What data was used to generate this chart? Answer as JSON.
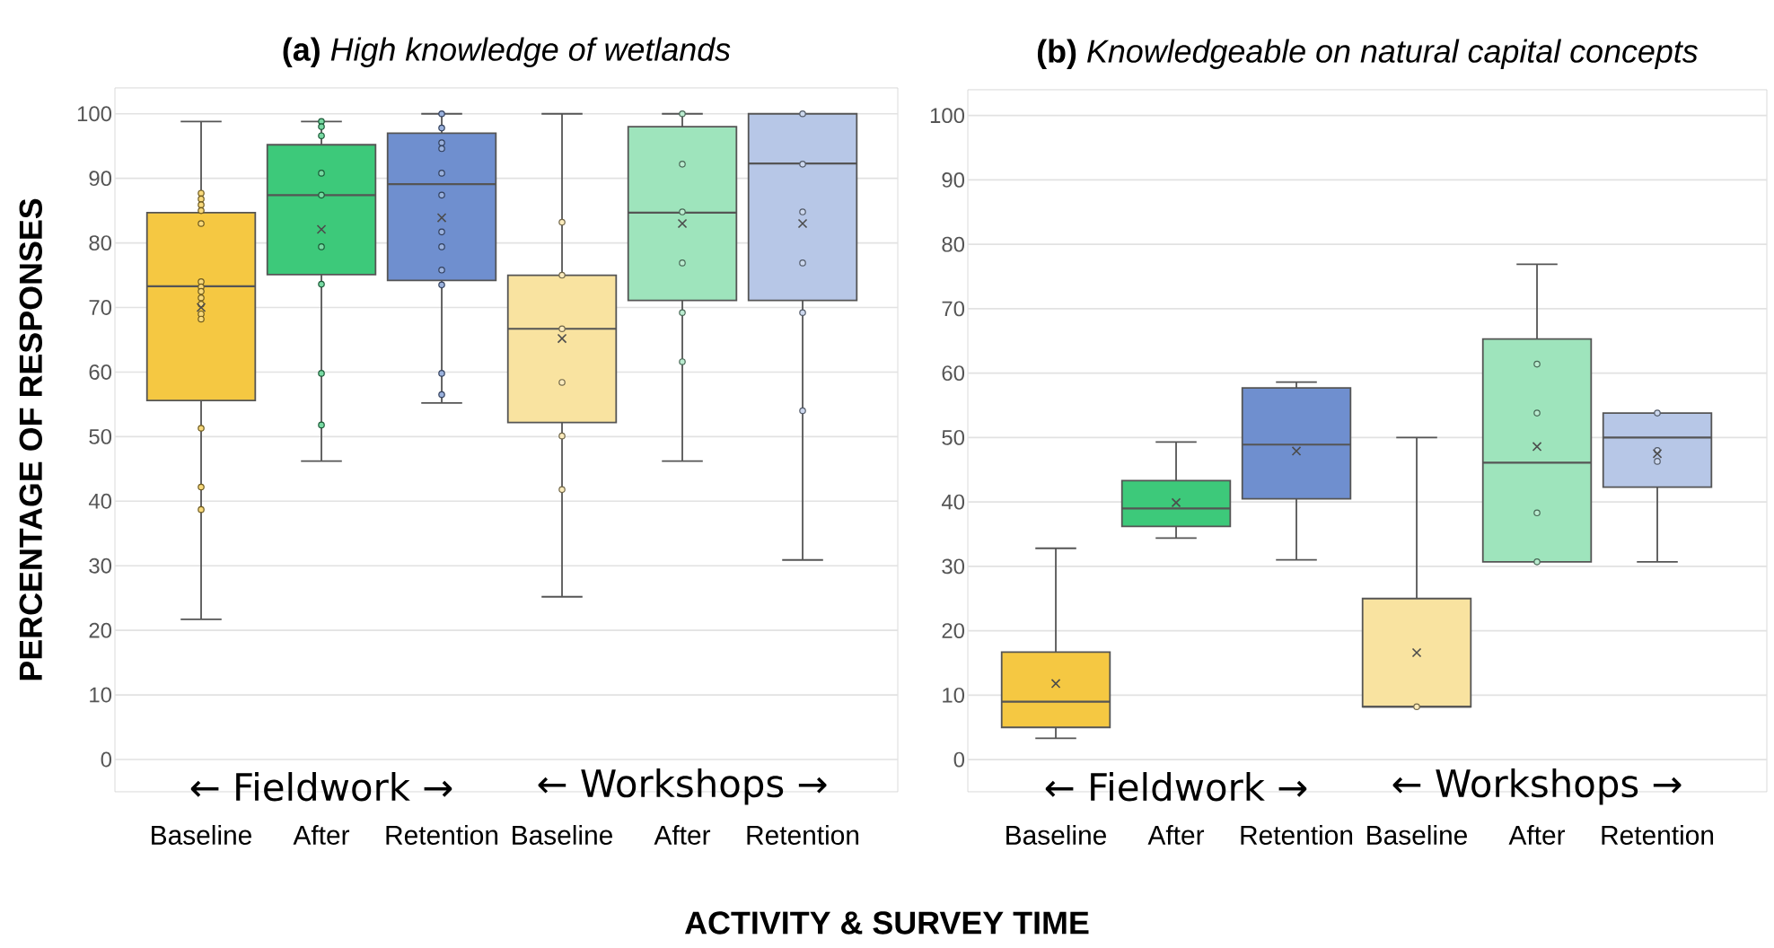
{
  "chart_data": [
    {
      "type": "box",
      "title": "**(a)** *High knowledge of wetlands*",
      "ylabel": "PERCENTAGE OF RESPONSES",
      "xlabel": "ACTIVITY & SURVEY TIME",
      "categories": [
        "Baseline",
        "After",
        "Retention",
        "Baseline",
        "After",
        "Retention"
      ],
      "ylim": [
        -5,
        104
      ],
      "yticks": [
        0,
        10,
        20,
        30,
        40,
        50,
        60,
        70,
        80,
        90,
        100
      ],
      "grid": "y",
      "annotations": [
        "← Fieldwork →",
        "← Workshops →"
      ],
      "series": [
        {
          "colors": [
            "#f5c842",
            "#3dc97a",
            "#6f8fcf",
            null,
            null,
            null
          ],
          "boxes": [
            {
              "low": 21.7,
              "q1": 55.6,
              "median": 73.3,
              "q3": 84.7,
              "high": 98.8,
              "mean": 70,
              "outliers": [
                87.7,
                86.8,
                85.9,
                85.0,
                83.0,
                74.0,
                73.2,
                72.5,
                71.5,
                70.5,
                69.0,
                68.2,
                51.3,
                42.2,
                38.7
              ]
            },
            {
              "low": 46.2,
              "q1": 75.1,
              "median": 87.4,
              "q3": 95.2,
              "high": 98.8,
              "mean": 82.1,
              "outliers": [
                98.8,
                98.0,
                96.6,
                90.8,
                87.4,
                79.4,
                73.6,
                59.8,
                51.8
              ]
            },
            {
              "low": 55.2,
              "q1": 74.2,
              "median": 89.1,
              "q3": 97,
              "high": 100,
              "mean": 83.9,
              "outliers": [
                100,
                97.8,
                95.5,
                94.6,
                90.8,
                87.4,
                81.7,
                79.4,
                75.8,
                73.5,
                59.8,
                56.5
              ]
            },
            null,
            null,
            null
          ]
        },
        {
          "colors": [
            null,
            null,
            null,
            "#f9e3a0",
            "#9ee4bc",
            "#b7c7e7"
          ],
          "boxes": [
            null,
            null,
            null,
            {
              "low": 25.2,
              "q1": 52.2,
              "median": 66.7,
              "q3": 75,
              "high": 100,
              "mean": 65.2,
              "outliers": [
                83.2,
                75,
                66.7,
                58.4,
                50.1,
                41.8
              ]
            },
            {
              "low": 46.2,
              "q1": 71.1,
              "median": 84.7,
              "q3": 98,
              "high": 100,
              "mean": 83,
              "outliers": [
                100,
                92.2,
                84.8,
                76.9,
                69.2,
                61.6
              ]
            },
            {
              "low": 30.9,
              "q1": 71.1,
              "median": 92.3,
              "q3": 100,
              "high": 100,
              "mean": 83,
              "outliers": [
                100,
                92.2,
                84.8,
                76.9,
                69.2,
                54.0
              ]
            }
          ]
        }
      ]
    },
    {
      "type": "box",
      "title": "**(b)** *Knowledgeable on natural capital concepts*",
      "categories": [
        "Baseline",
        "After",
        "Retention",
        "Baseline",
        "After",
        "Retention"
      ],
      "ylim": [
        -5,
        104
      ],
      "yticks": [
        0,
        10,
        20,
        30,
        40,
        50,
        60,
        70,
        80,
        90,
        100
      ],
      "grid": "y",
      "annotations": [
        "← Fieldwork →",
        "← Workshops →"
      ],
      "series": [
        {
          "colors": [
            "#f5c842",
            "#3dc97a",
            "#6f8fcf",
            null,
            null,
            null
          ],
          "boxes": [
            {
              "low": 3.3,
              "q1": 5.0,
              "median": 9.0,
              "q3": 16.7,
              "high": 32.8,
              "mean": 11.8
            },
            {
              "low": 34.4,
              "q1": 36.2,
              "median": 39.0,
              "q3": 43.3,
              "high": 49.3,
              "mean": 39.9
            },
            {
              "low": 31.0,
              "q1": 40.5,
              "median": 48.9,
              "q3": 57.7,
              "high": 58.6,
              "mean": 47.9
            },
            null,
            null,
            null
          ]
        },
        {
          "colors": [
            null,
            null,
            null,
            "#f9e3a0",
            "#9ee4bc",
            "#b7c7e7"
          ],
          "boxes": [
            null,
            null,
            null,
            {
              "low": 8.2,
              "q1": 8.2,
              "median": 8.2,
              "q3": 25.0,
              "high": 50.0,
              "mean": 16.6,
              "outliers": [
                8.2
              ]
            },
            {
              "low": 30.7,
              "q1": 30.7,
              "median": 46.1,
              "q3": 65.3,
              "high": 76.9,
              "mean": 48.6,
              "outliers": [
                61.4,
                53.8,
                38.3,
                30.7
              ]
            },
            {
              "low": 30.7,
              "q1": 42.3,
              "median": 50.0,
              "q3": 53.8,
              "high": 53.8,
              "mean": 47.5,
              "outliers": [
                53.8,
                48.0,
                46.3
              ]
            }
          ]
        }
      ]
    }
  ]
}
